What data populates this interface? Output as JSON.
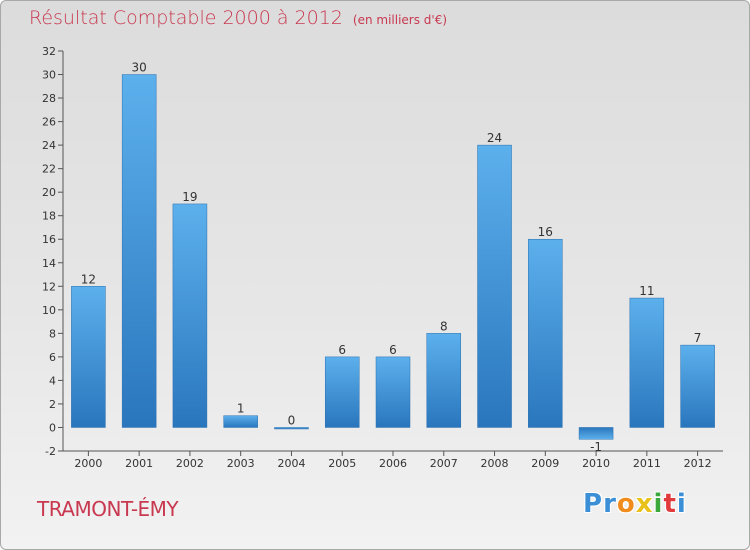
{
  "chart_data": {
    "type": "bar",
    "title": "Résultat Comptable 2000 à 2012",
    "unit_label": "(en milliers d'€)",
    "categories": [
      "2000",
      "2001",
      "2002",
      "2003",
      "2004",
      "2005",
      "2006",
      "2007",
      "2008",
      "2009",
      "2010",
      "2011",
      "2012"
    ],
    "values": [
      12,
      30,
      19,
      1,
      0,
      6,
      6,
      8,
      24,
      16,
      -1,
      11,
      7
    ],
    "value_labels": [
      "12",
      "30",
      "19",
      "1",
      "0",
      "6",
      "6",
      "8",
      "24",
      "16",
      "-1",
      "11",
      "7"
    ],
    "ylim": [
      -2,
      32
    ],
    "yticks": [
      -2,
      0,
      2,
      4,
      6,
      8,
      10,
      12,
      14,
      16,
      18,
      20,
      22,
      24,
      26,
      28,
      30,
      32
    ],
    "grid": false,
    "xlabel": "",
    "ylabel": "",
    "bar_color": "#3a8fd6"
  },
  "footer": {
    "place_name": "TRAMONT-ÉMY",
    "logo_letters": [
      "P",
      "r",
      "o",
      "x",
      "i",
      "t",
      "i"
    ],
    "logo_colors": [
      "#3a8fd6",
      "#3a8fd6",
      "#f08c1e",
      "#e8c21a",
      "#3aa83a",
      "#e03a3a",
      "#3a8fd6"
    ]
  }
}
